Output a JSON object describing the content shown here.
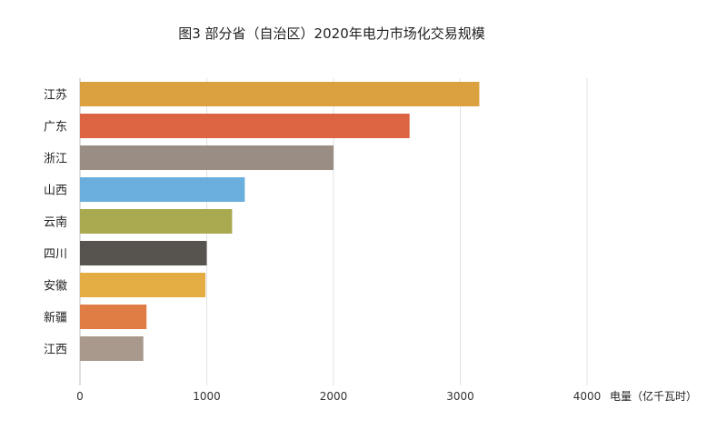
{
  "chart_data": {
    "type": "bar",
    "orientation": "horizontal",
    "title": "图3 部分省（自治区）2020年电力市场化交易规模",
    "xlabel": "电量（亿千瓦时）",
    "ylabel": "",
    "xlim": [
      0,
      4000
    ],
    "x_ticks": [
      0,
      1000,
      2000,
      3000,
      4000
    ],
    "grid": true,
    "categories": [
      "江苏",
      "广东",
      "浙江",
      "山西",
      "云南",
      "四川",
      "安徽",
      "新疆",
      "江西"
    ],
    "values": [
      3150,
      2600,
      2000,
      1300,
      1200,
      1000,
      990,
      525,
      500
    ],
    "colors": [
      "#dba13e",
      "#dd6443",
      "#9a8d83",
      "#6aaedd",
      "#a9a94f",
      "#57534e",
      "#e4ad44",
      "#e07d45",
      "#a8998c"
    ]
  }
}
